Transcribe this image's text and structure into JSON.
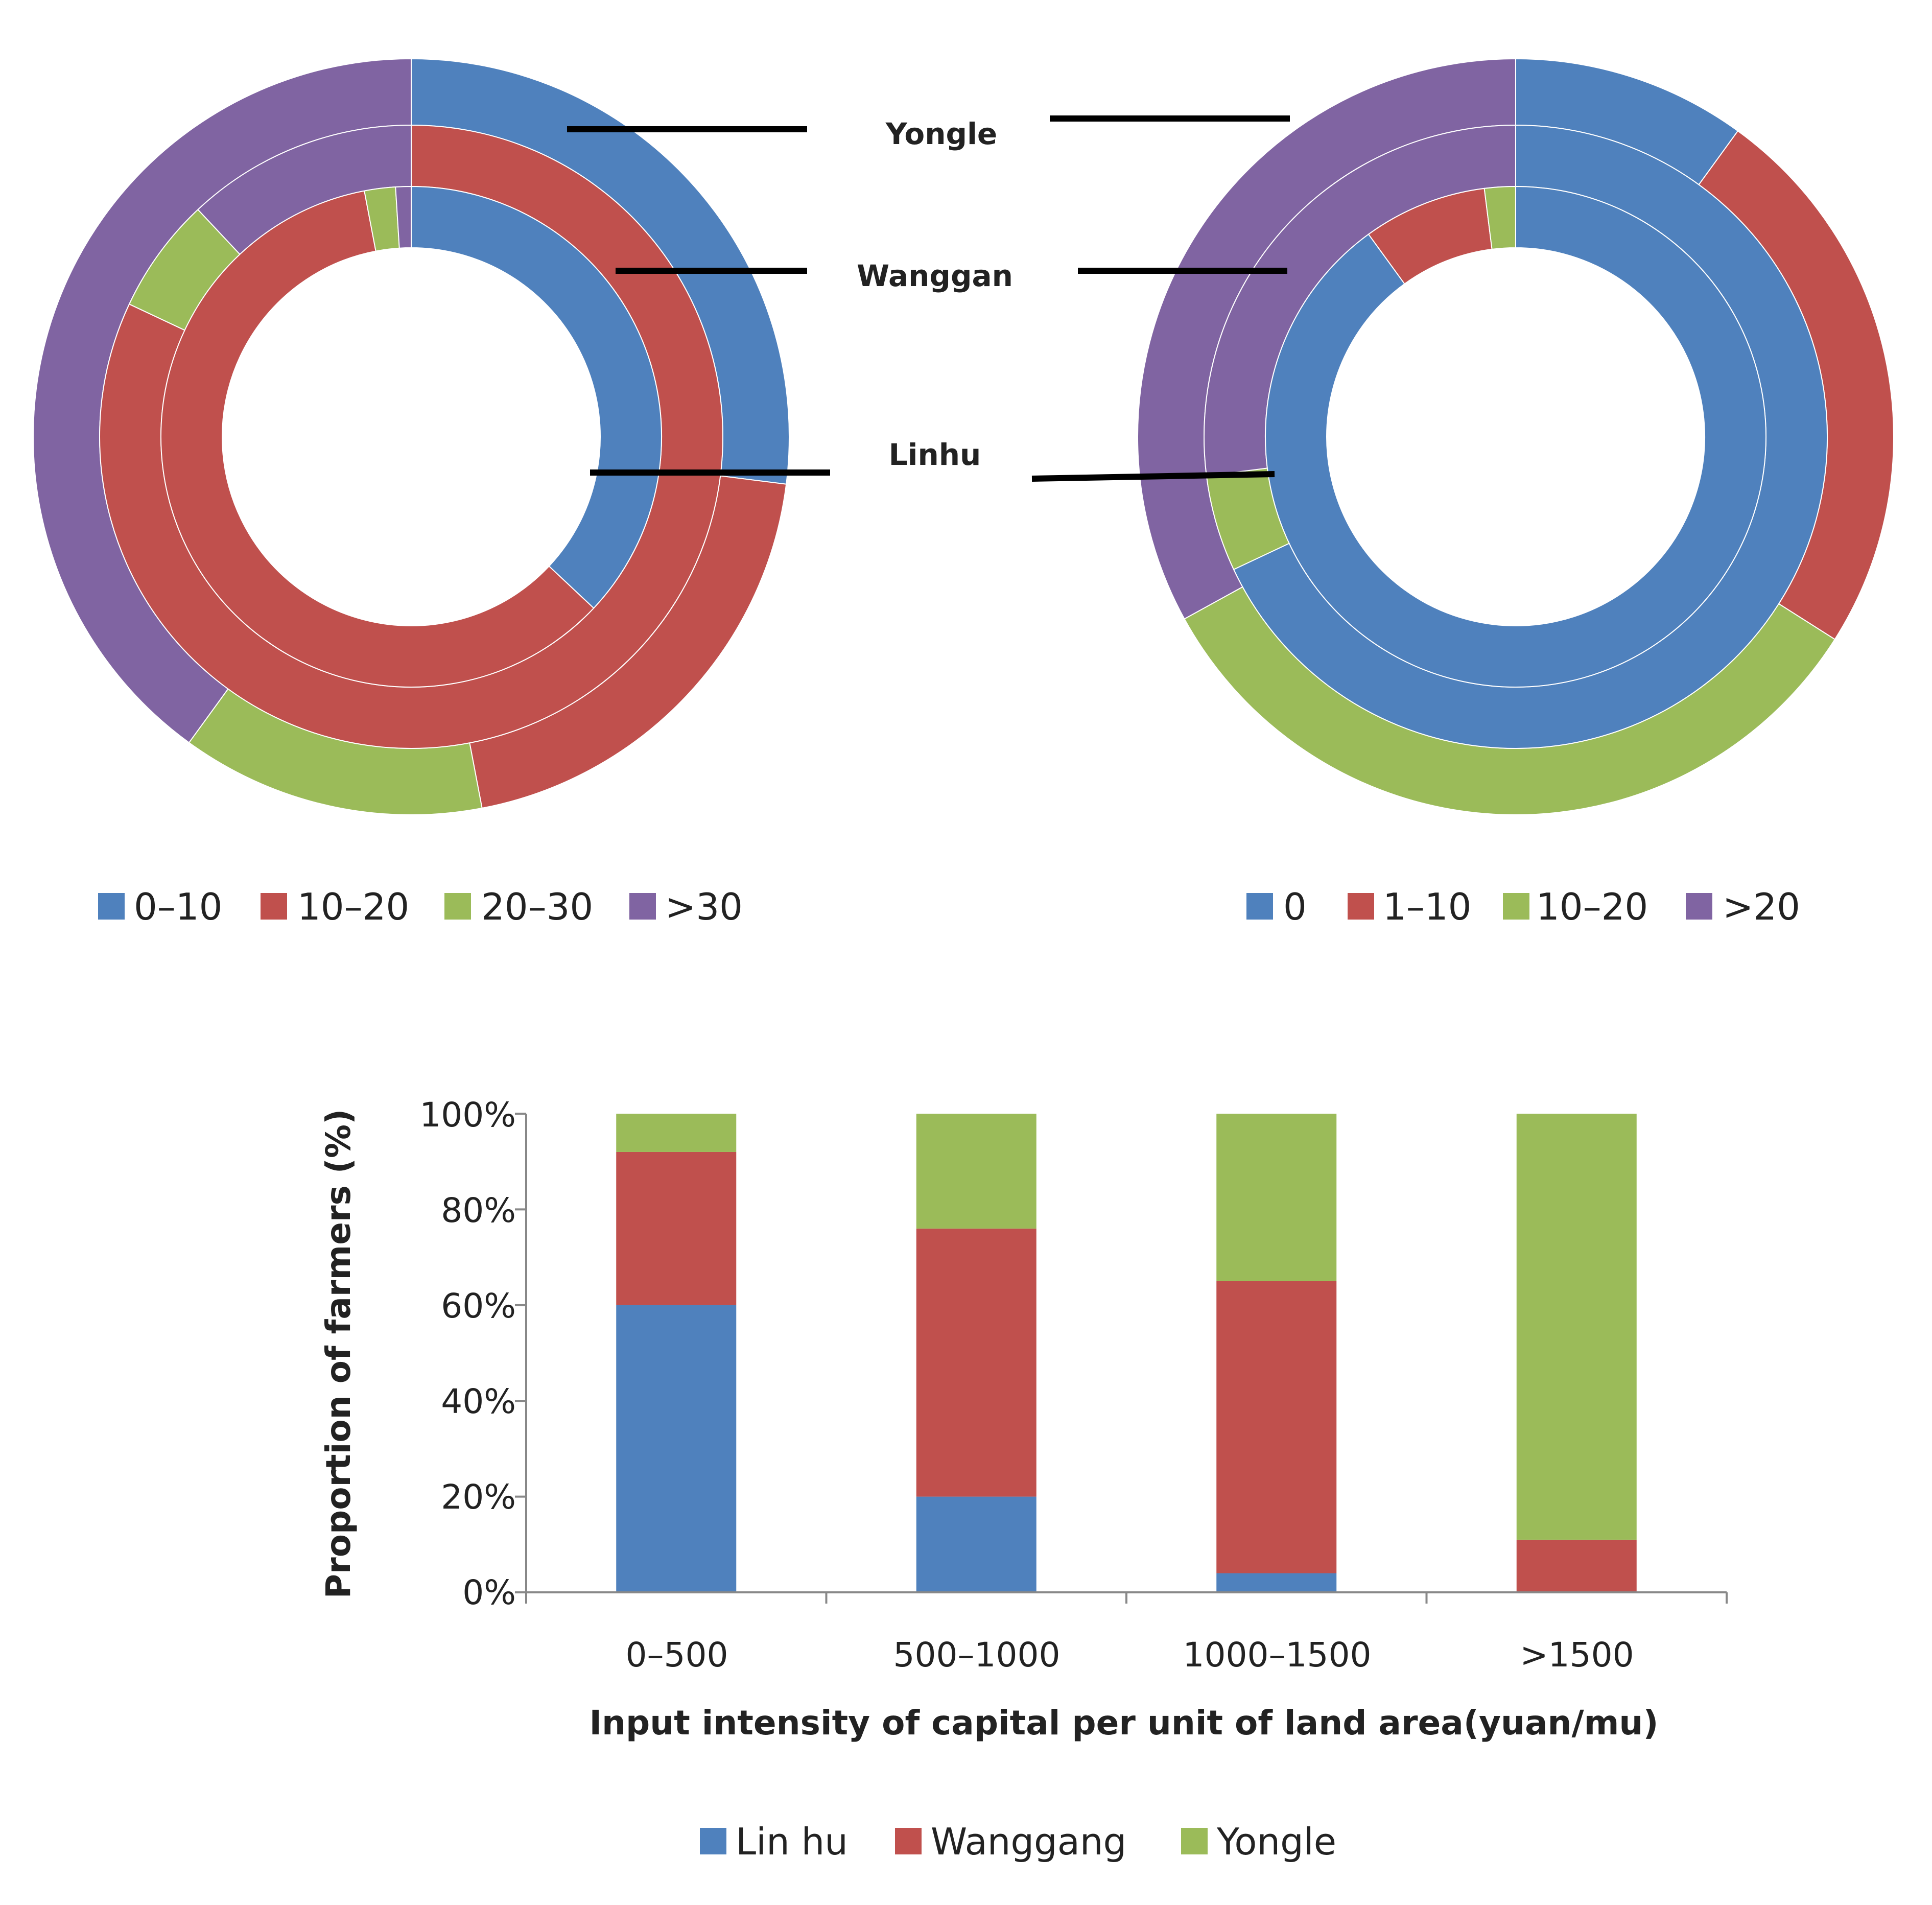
{
  "colors": {
    "blue": "#4F81BD",
    "red": "#C0504D",
    "green": "#9BBB59",
    "purple": "#8064A2"
  },
  "ring_labels": [
    "Yongle",
    "Wanggan",
    "Linhu"
  ],
  "chart_data": [
    {
      "type": "pie",
      "subtype": "multi-ring-donut",
      "position": "top-left",
      "rings_outer_to_inner": [
        "Yongle",
        "Wanggan",
        "Linhu"
      ],
      "legend": [
        "0–10",
        "10–20",
        "20–30",
        ">30"
      ],
      "series": [
        {
          "name": "Yongle",
          "values": [
            27,
            20,
            13,
            40
          ]
        },
        {
          "name": "Wanggan",
          "values": [
            0,
            82,
            6,
            12
          ]
        },
        {
          "name": "Linhu",
          "values": [
            37,
            60,
            2,
            1
          ]
        }
      ]
    },
    {
      "type": "pie",
      "subtype": "multi-ring-donut",
      "position": "top-right",
      "rings_outer_to_inner": [
        "Yongle",
        "Wanggan",
        "Linhu"
      ],
      "legend": [
        "0",
        "1–10",
        "10–20",
        ">20"
      ],
      "series": [
        {
          "name": "Yongle",
          "values": [
            10,
            24,
            33,
            33
          ]
        },
        {
          "name": "Wanggan",
          "values": [
            68,
            0,
            5,
            27
          ]
        },
        {
          "name": "Linhu",
          "values": [
            90,
            8,
            2,
            0
          ]
        }
      ]
    },
    {
      "type": "bar",
      "stacked": true,
      "position": "bottom",
      "categories": [
        "0–500",
        "500–1000",
        "1000–1500",
        ">1500"
      ],
      "series": [
        {
          "name": "Lin hu",
          "values": [
            60,
            20,
            4,
            0
          ]
        },
        {
          "name": "Wanggang",
          "values": [
            32,
            56,
            61,
            11
          ]
        },
        {
          "name": "Yongle",
          "values": [
            8,
            24,
            35,
            89
          ]
        }
      ],
      "ylim": [
        0,
        100
      ],
      "yticks": [
        "0%",
        "20%",
        "40%",
        "60%",
        "80%",
        "100%"
      ],
      "xlabel": "Input intensity of capital per unit of land area(yuan/mu)",
      "ylabel": "Proportion of farmers (%)",
      "legend": [
        "Lin hu",
        "Wanggang",
        "Yongle"
      ]
    }
  ]
}
